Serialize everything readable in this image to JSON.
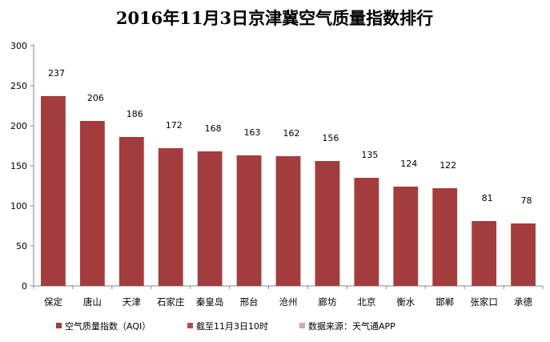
{
  "chart_data": {
    "type": "bar",
    "title": "2016年11月3日京津冀空气质量指数排行",
    "xlabel": "",
    "ylabel": "",
    "ylim": [
      0,
      300
    ],
    "yticks": [
      0,
      50,
      100,
      150,
      200,
      250,
      300
    ],
    "grid": false,
    "categories": [
      "保定",
      "唐山",
      "天津",
      "石家庄",
      "秦皇岛",
      "邢台",
      "沧州",
      "廊坊",
      "北京",
      "衡水",
      "邯郸",
      "张家口",
      "承德"
    ],
    "series": [
      {
        "name": "空气质量指数（AQI）",
        "color": "#a33d3d",
        "values": [
          237,
          206,
          186,
          172,
          168,
          163,
          162,
          156,
          135,
          124,
          122,
          81,
          78
        ]
      }
    ],
    "legend": {
      "placement": "bottom-left",
      "entries": [
        {
          "label": "空气质量指数（AQI）",
          "color": "#a33d3d"
        },
        {
          "label": "截至11月3日10时",
          "color": "#b84a4a"
        },
        {
          "label": "数据来源：天气通APP",
          "color": "#d9a6a6"
        }
      ]
    }
  }
}
